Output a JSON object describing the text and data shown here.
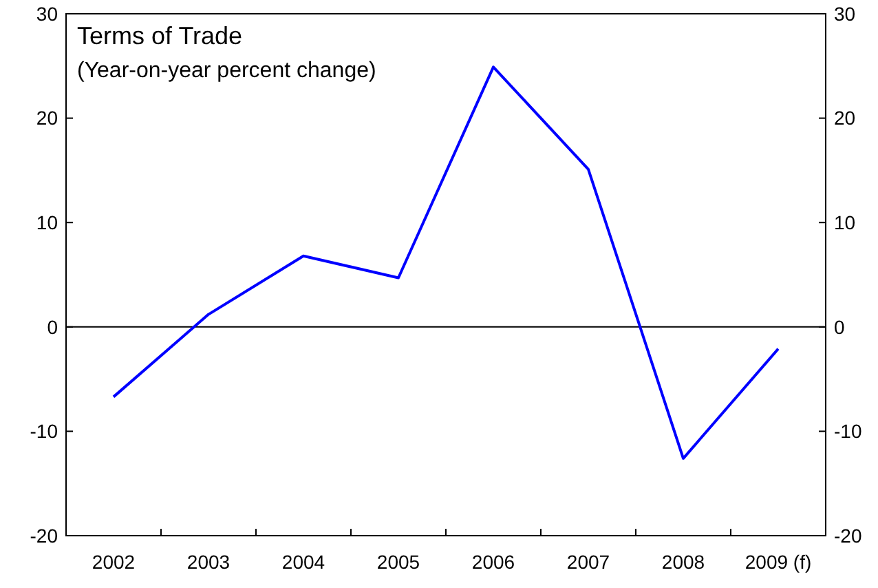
{
  "chart_data": {
    "type": "line",
    "title": "Terms of Trade",
    "subtitle": "(Year-on-year percent change)",
    "categories": [
      "2002",
      "2003",
      "2004",
      "2005",
      "2006",
      "2007",
      "2008",
      "2009 (f)"
    ],
    "series": [
      {
        "color": "#0000ff",
        "values": [
          -6.7,
          1.2,
          6.8,
          4.7,
          24.9,
          15.1,
          -12.6,
          -2.1
        ]
      }
    ],
    "ylim": [
      -20,
      30
    ],
    "yticks": [
      -20,
      -10,
      0,
      10,
      20,
      30
    ],
    "y2lim": [
      -20,
      30
    ],
    "y2ticks": [
      -20,
      -10,
      0,
      10,
      20,
      30
    ],
    "ref_lines": [
      {
        "axis": "y",
        "value": 0,
        "color": "#000000"
      }
    ],
    "grid": false,
    "marker": "none",
    "line_style": "solid"
  }
}
